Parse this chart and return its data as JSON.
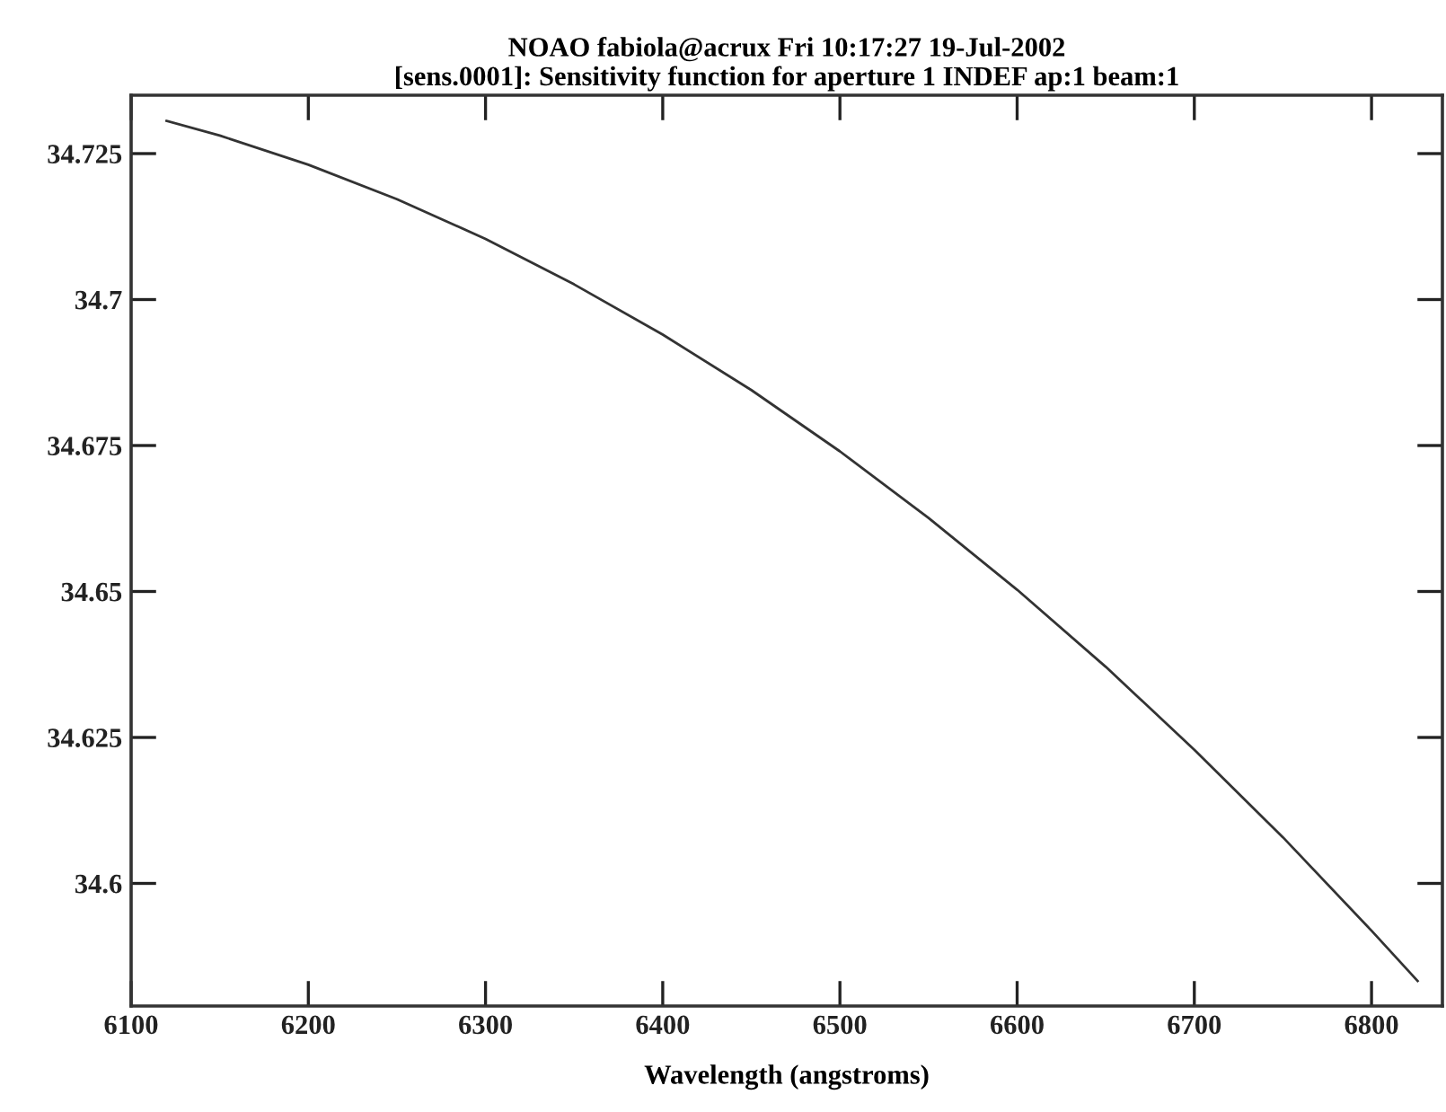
{
  "chart_data": {
    "type": "line",
    "title": "NOAO fabiola@acrux Fri 10:17:27 19-Jul-2002\n[sens.0001]: Sensitivity function for aperture 1 INDEF ap:1 beam:1",
    "xlabel": "Wavelength (angstroms)",
    "x": [
      6120,
      6150,
      6200,
      6250,
      6300,
      6350,
      6400,
      6450,
      6500,
      6550,
      6600,
      6650,
      6700,
      6750,
      6800,
      6826
    ],
    "series": [
      {
        "color": "#333333",
        "values": [
          34.7306,
          34.7281,
          34.7231,
          34.7172,
          34.7104,
          34.7026,
          34.694,
          34.6845,
          34.674,
          34.6626,
          34.6503,
          34.6371,
          34.6229,
          34.6079,
          34.5919,
          34.5833
        ]
      }
    ],
    "xlim": [
      6100,
      6840
    ],
    "xticks": [
      6100,
      6200,
      6300,
      6400,
      6500,
      6600,
      6700,
      6800
    ],
    "ylim": [
      34.579,
      34.735
    ],
    "yticks": [
      34.6,
      34.625,
      34.65,
      34.675,
      34.7,
      34.725
    ],
    "grid": false,
    "legend": false,
    "marker": "none",
    "line_style": "solid"
  }
}
